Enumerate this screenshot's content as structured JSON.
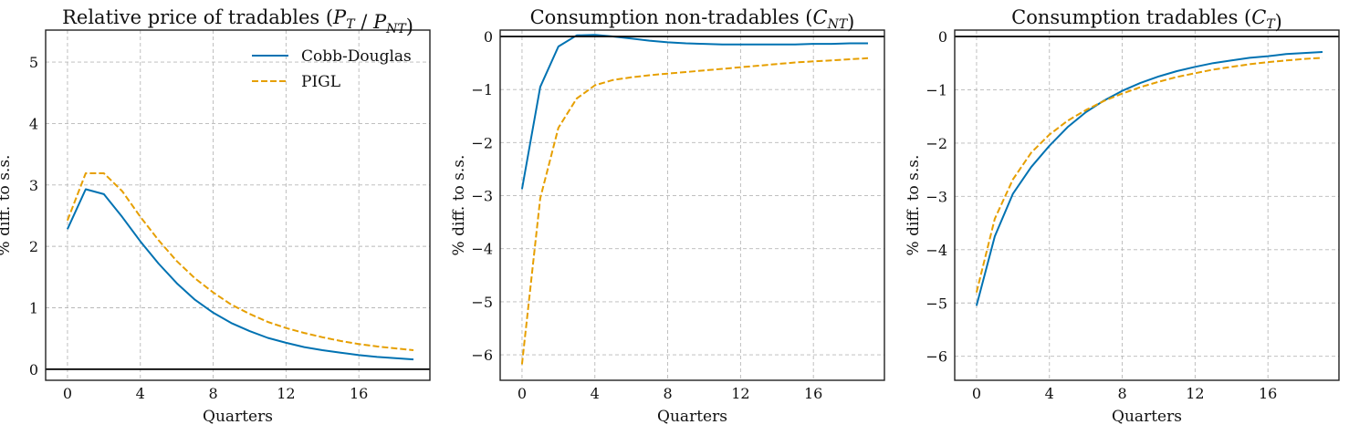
{
  "chart_data": [
    {
      "type": "line",
      "title": "Relative price of tradables ",
      "title_math": "(P_T / P_NT)",
      "xlabel": "Quarters",
      "ylabel": "% diff. to s.s.",
      "xlim": [
        -1.2,
        19.9
      ],
      "ylim": [
        -0.18,
        5.52
      ],
      "xticks": [
        0,
        4,
        8,
        12,
        16
      ],
      "yticks": [
        0,
        1,
        2,
        3,
        4,
        5
      ],
      "grid": true,
      "legend": "top-right",
      "zero_line": true,
      "x": [
        0,
        1,
        2,
        3,
        4,
        5,
        6,
        7,
        8,
        9,
        10,
        11,
        12,
        13,
        14,
        15,
        16,
        17,
        18,
        19
      ],
      "series": [
        {
          "name": "Cobb-Douglas",
          "color": "#0072b2",
          "style": "solid",
          "values": [
            2.28,
            2.93,
            2.85,
            2.48,
            2.08,
            1.72,
            1.4,
            1.13,
            0.92,
            0.75,
            0.62,
            0.51,
            0.43,
            0.36,
            0.31,
            0.27,
            0.23,
            0.2,
            0.18,
            0.16
          ]
        },
        {
          "name": "PIGL",
          "color": "#e69f00",
          "style": "dashed",
          "values": [
            2.42,
            3.19,
            3.19,
            2.9,
            2.48,
            2.1,
            1.76,
            1.48,
            1.25,
            1.05,
            0.9,
            0.77,
            0.67,
            0.59,
            0.52,
            0.46,
            0.41,
            0.37,
            0.34,
            0.31
          ]
        }
      ]
    },
    {
      "type": "line",
      "title": "Consumption non-tradables ",
      "title_math": "(C_NT)",
      "xlabel": "Quarters",
      "ylabel": "% diff. to s.s.",
      "xlim": [
        -1.2,
        19.9
      ],
      "ylim": [
        -6.48,
        0.12
      ],
      "xticks": [
        0,
        4,
        8,
        12,
        16
      ],
      "yticks": [
        0,
        -1,
        -2,
        -3,
        -4,
        -5,
        -6
      ],
      "grid": true,
      "zero_line": true,
      "x": [
        0,
        1,
        2,
        3,
        4,
        5,
        6,
        7,
        8,
        9,
        10,
        11,
        12,
        13,
        14,
        15,
        16,
        17,
        18,
        19
      ],
      "series": [
        {
          "name": "Cobb-Douglas",
          "color": "#0072b2",
          "style": "solid",
          "values": [
            -2.88,
            -0.95,
            -0.19,
            0.02,
            0.03,
            0.0,
            -0.04,
            -0.08,
            -0.11,
            -0.13,
            -0.14,
            -0.15,
            -0.15,
            -0.15,
            -0.15,
            -0.15,
            -0.14,
            -0.14,
            -0.13,
            -0.13
          ]
        },
        {
          "name": "PIGL",
          "color": "#e69f00",
          "style": "dashed",
          "values": [
            -6.18,
            -3.05,
            -1.72,
            -1.17,
            -0.92,
            -0.82,
            -0.77,
            -0.73,
            -0.7,
            -0.67,
            -0.64,
            -0.61,
            -0.58,
            -0.55,
            -0.52,
            -0.49,
            -0.47,
            -0.45,
            -0.43,
            -0.41
          ]
        }
      ]
    },
    {
      "type": "line",
      "title": "Consumption tradables ",
      "title_math": "(C_T)",
      "xlabel": "Quarters",
      "ylabel": "% diff. to s.s.",
      "xlim": [
        -1.2,
        19.9
      ],
      "ylim": [
        -6.45,
        0.12
      ],
      "xticks": [
        0,
        4,
        8,
        12,
        16
      ],
      "yticks": [
        0,
        -1,
        -2,
        -3,
        -4,
        -5,
        -6
      ],
      "grid": true,
      "zero_line": true,
      "x": [
        0,
        1,
        2,
        3,
        4,
        5,
        6,
        7,
        8,
        9,
        10,
        11,
        12,
        13,
        14,
        15,
        16,
        17,
        18,
        19
      ],
      "series": [
        {
          "name": "Cobb-Douglas",
          "color": "#0072b2",
          "style": "solid",
          "values": [
            -5.05,
            -3.75,
            -2.95,
            -2.45,
            -2.05,
            -1.7,
            -1.42,
            -1.2,
            -1.02,
            -0.87,
            -0.75,
            -0.65,
            -0.57,
            -0.5,
            -0.45,
            -0.4,
            -0.37,
            -0.33,
            -0.31,
            -0.29
          ]
        },
        {
          "name": "PIGL",
          "color": "#e69f00",
          "style": "dashed",
          "values": [
            -4.8,
            -3.42,
            -2.68,
            -2.18,
            -1.84,
            -1.58,
            -1.38,
            -1.21,
            -1.07,
            -0.95,
            -0.85,
            -0.76,
            -0.69,
            -0.62,
            -0.57,
            -0.52,
            -0.48,
            -0.45,
            -0.42,
            -0.4
          ]
        }
      ]
    }
  ]
}
